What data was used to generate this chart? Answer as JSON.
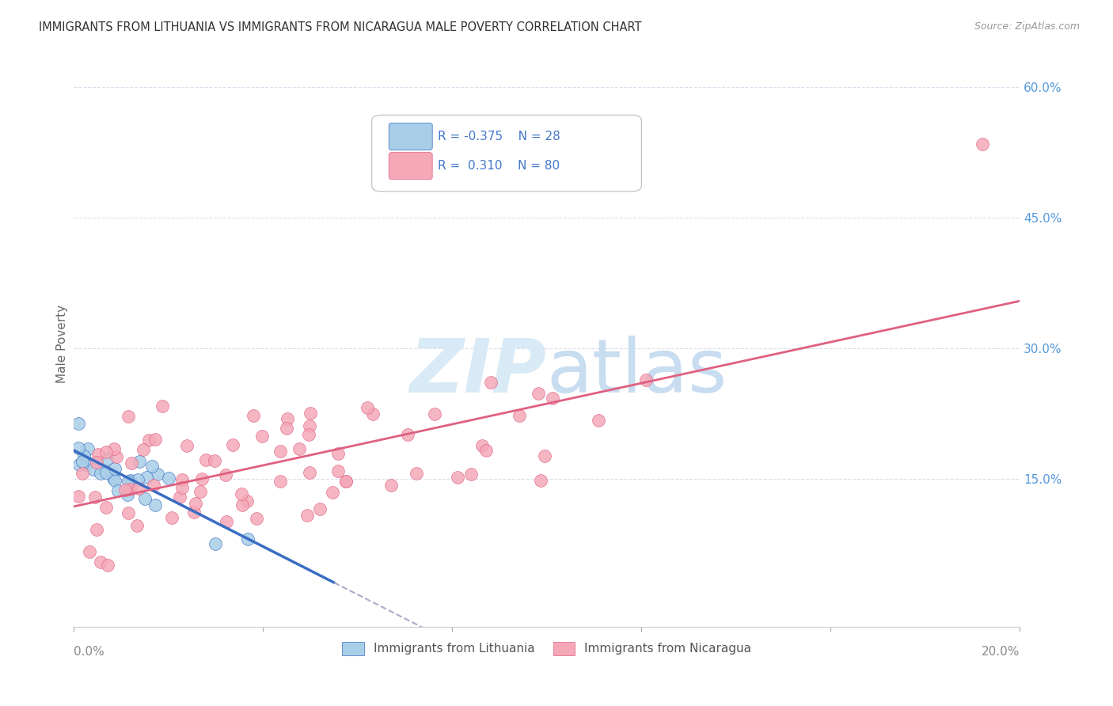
{
  "title": "IMMIGRANTS FROM LITHUANIA VS IMMIGRANTS FROM NICARAGUA MALE POVERTY CORRELATION CHART",
  "source": "Source: ZipAtlas.com",
  "ylabel": "Male Poverty",
  "xlim": [
    0.0,
    0.2
  ],
  "ylim": [
    -0.02,
    0.63
  ],
  "color_blue": "#A8CEE8",
  "color_pink": "#F4A8B8",
  "color_blue_line": "#3A6DC2",
  "color_pink_line": "#E06080",
  "color_dashed": "#AAAACC",
  "background_color": "#FFFFFF",
  "watermark_zip_color": "#D8EAF5",
  "watermark_atlas_color": "#C8DDF0",
  "grid_color": "#DDDDEE",
  "right_tick_color": "#5599DD",
  "legend_text_color": "#4477CC"
}
